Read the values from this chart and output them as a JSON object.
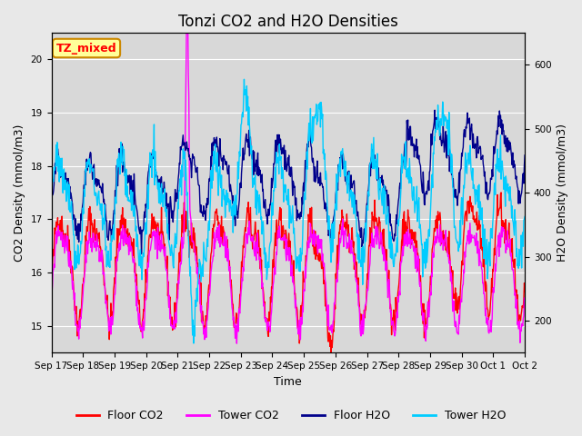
{
  "title": "Tonzi CO2 and H2O Densities",
  "xlabel": "Time",
  "ylabel_left": "CO2 Density (mmol/m3)",
  "ylabel_right": "H2O Density (mmol/m3)",
  "annotation": "TZ_mixed",
  "ylim_left": [
    14.5,
    20.5
  ],
  "ylim_right": [
    150,
    650
  ],
  "xtick_labels": [
    "Sep 17",
    "Sep 18",
    "Sep 19",
    "Sep 20",
    "Sep 21",
    "Sep 22",
    "Sep 23",
    "Sep 24",
    "Sep 25",
    "Sep 26",
    "Sep 27",
    "Sep 28",
    "Sep 29",
    "Sep 30",
    "Oct 1",
    "Oct 2"
  ],
  "legend_labels": [
    "Floor CO2",
    "Tower CO2",
    "Floor H2O",
    "Tower H2O"
  ],
  "legend_colors": [
    "#FF0000",
    "#FF00FF",
    "#00008B",
    "#00CCFF"
  ],
  "background_color": "#E8E8E8",
  "plot_bg_color": "#D8D8D8",
  "grid_color": "#FFFFFF",
  "title_fontsize": 12,
  "label_fontsize": 9,
  "tick_fontsize": 7.5,
  "legend_fontsize": 9,
  "line_width": 1.0,
  "num_points": 900
}
